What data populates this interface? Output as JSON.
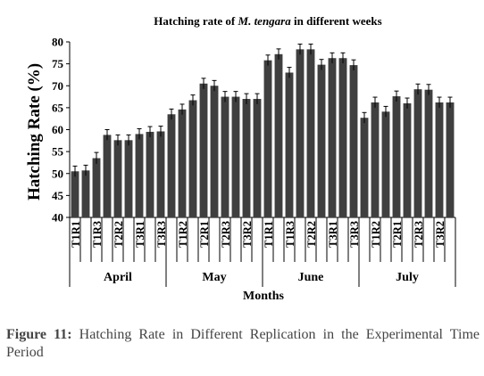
{
  "chart_data": {
    "type": "bar",
    "title": {
      "prefix": "Hatching rate of ",
      "italic": "M. tengara",
      "suffix": " in different weeks"
    },
    "xlabel": "Months",
    "ylabel": "Hatching Rate (%)",
    "ylim": [
      40,
      80
    ],
    "yticks": [
      40,
      45,
      50,
      55,
      60,
      65,
      70,
      75,
      80
    ],
    "grid": false,
    "bar_color": "#3f3f3f",
    "months": [
      "April",
      "May",
      "June",
      "July"
    ],
    "tick_labels": [
      "T1R1",
      "",
      "T1R3",
      "",
      "T2R2",
      "",
      "T3R1",
      "",
      "T3R3",
      "",
      "T1R2",
      "",
      "T2R1",
      "",
      "T2R3",
      "",
      "T3R2",
      "",
      "T1R1",
      "",
      "T1R3",
      "",
      "T2R2",
      "",
      "T3R1",
      "",
      "T3R3",
      "",
      "T1R2",
      "",
      "T2R1",
      "",
      "T2R3",
      "",
      "T3R2",
      ""
    ],
    "values": [
      50.5,
      50.7,
      53.5,
      58.8,
      57.6,
      57.6,
      59.0,
      59.5,
      59.6,
      63.5,
      64.6,
      66.7,
      70.5,
      70.0,
      67.5,
      67.5,
      67.0,
      67.0,
      75.8,
      77.2,
      73.0,
      78.3,
      78.3,
      74.8,
      76.3,
      76.3,
      74.7,
      62.7,
      66.2,
      64.1,
      67.6,
      66.0,
      69.2,
      69.1,
      66.2,
      66.2
    ],
    "error": [
      1.2,
      1.2,
      1.3,
      1.2,
      1.2,
      1.2,
      1.2,
      1.2,
      1.2,
      1.2,
      1.2,
      1.2,
      1.2,
      1.2,
      1.2,
      1.2,
      1.2,
      1.2,
      1.2,
      1.2,
      1.2,
      1.2,
      1.2,
      1.2,
      1.2,
      1.2,
      1.2,
      1.2,
      1.2,
      1.2,
      1.2,
      1.2,
      1.2,
      1.2,
      1.2,
      1.2
    ]
  },
  "caption": {
    "label": "Figure 11:",
    "text": " Hatching Rate in Different Replication in the Experimental Time Period"
  }
}
